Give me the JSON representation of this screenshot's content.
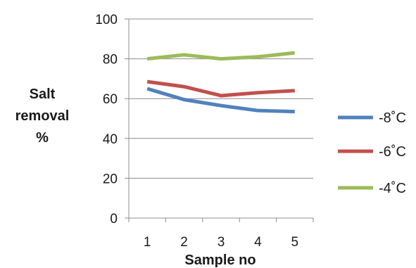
{
  "chart_data": {
    "type": "line",
    "title": "",
    "xlabel": "Sample no",
    "ylabel_lines": [
      "Salt",
      "removal",
      "%"
    ],
    "x": [
      1,
      2,
      3,
      4,
      5
    ],
    "ylim": [
      0,
      100
    ],
    "yticks": [
      0,
      20,
      40,
      60,
      80,
      100
    ],
    "grid": true,
    "legend_position": "right",
    "series": [
      {
        "name": "-8˚C",
        "color": "#4f81bd",
        "values": [
          65,
          59.5,
          56.5,
          54,
          53.5
        ]
      },
      {
        "name": "-6˚C",
        "color": "#c0504d",
        "values": [
          68.5,
          66,
          61.5,
          63,
          64
        ]
      },
      {
        "name": "-4˚C",
        "color": "#9bbb59",
        "values": [
          80,
          82,
          80,
          81,
          83
        ]
      }
    ]
  }
}
